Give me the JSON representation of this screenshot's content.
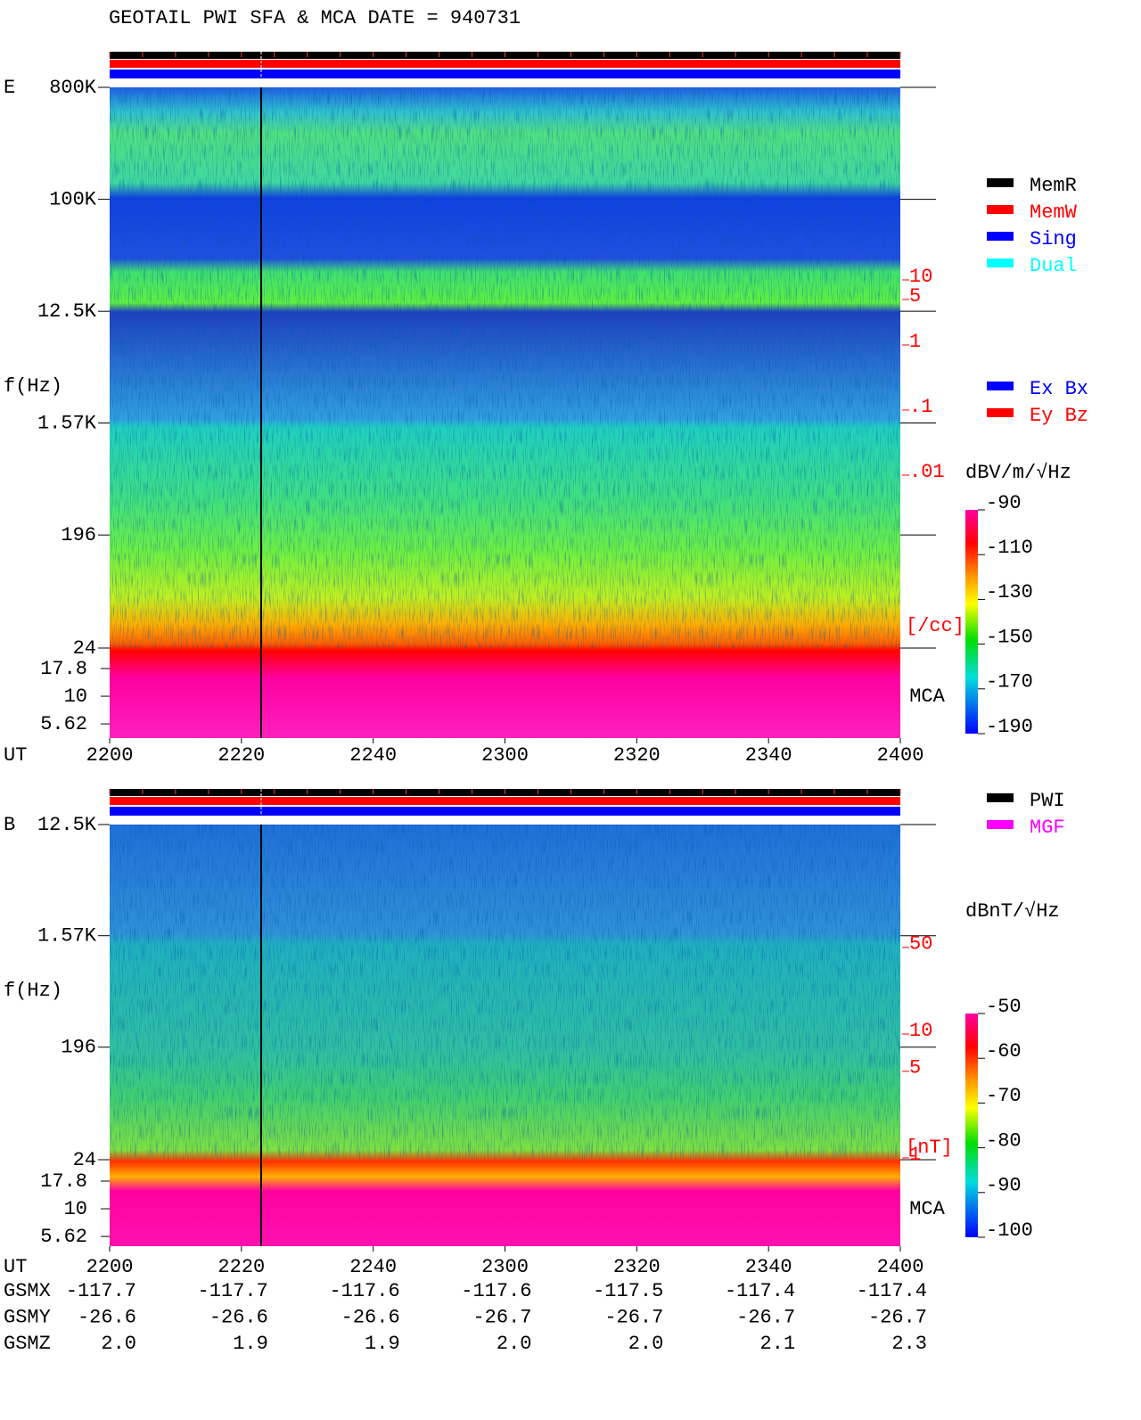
{
  "title": "GEOTAIL  PWI SFA & MCA   DATE = 940731",
  "chart_data": [
    {
      "type": "spectrogram",
      "panel": "E",
      "ylabel": "f(Hz)",
      "xlabel": "UT",
      "log_y": true,
      "ylim": [
        24,
        800000
      ],
      "yticks": [
        {
          "value": 800000,
          "label": "800K"
        },
        {
          "value": 100000,
          "label": "100K"
        },
        {
          "value": 12500,
          "label": "12.5K"
        },
        {
          "value": 1570,
          "label": "1.57K"
        },
        196,
        24
      ],
      "mca_label": "MCA",
      "mca_yticks": [
        17.8,
        10,
        5.62
      ],
      "xticks": [
        "2200",
        "2220",
        "2240",
        "2300",
        "2320",
        "2340",
        "2400"
      ],
      "side_scale": {
        "ticks": [
          10,
          5,
          1,
          {
            "value": 0.1,
            "label": ".1"
          },
          {
            "value": 0.01,
            "label": ".01"
          }
        ],
        "unit": "[/cc]",
        "color": "#ff0000"
      },
      "colorbar": {
        "label": "dBV/m/√Hz",
        "clim": [
          -190,
          -90
        ],
        "ticks": [
          -90,
          -110,
          -130,
          -150,
          -170,
          -190
        ]
      },
      "legends": [
        [
          {
            "name": "MemR",
            "color": "#000000"
          },
          {
            "name": "MemW",
            "color": "#ff0000"
          },
          {
            "name": "Sing",
            "color": "#0000ff"
          },
          {
            "name": "Dual",
            "color": "#00ffff"
          }
        ],
        [
          {
            "name": "Ex Bx",
            "color": "#0000ff"
          },
          {
            "name": "Ey Bz",
            "color": "#ff0000"
          }
        ]
      ]
    },
    {
      "type": "spectrogram",
      "panel": "B",
      "ylabel": "f(Hz)",
      "xlabel": "UT",
      "log_y": true,
      "ylim": [
        24,
        12500
      ],
      "yticks": [
        {
          "value": 12500,
          "label": "12.5K"
        },
        {
          "value": 1570,
          "label": "1.57K"
        },
        196,
        24
      ],
      "mca_label": "MCA",
      "mca_yticks": [
        17.8,
        10,
        5.62
      ],
      "xticks": [
        "2200",
        "2220",
        "2240",
        "2300",
        "2320",
        "2340",
        "2400"
      ],
      "side_scale": {
        "ticks": [
          50,
          10,
          5,
          1
        ],
        "unit": "[nT]",
        "color": "#ff0000"
      },
      "colorbar": {
        "label": "dBnT/√Hz",
        "clim": [
          -100,
          -50
        ],
        "ticks": [
          -50,
          -60,
          -70,
          -80,
          -90,
          -100
        ]
      },
      "legends": [
        [
          {
            "name": "PWI",
            "color": "#000000"
          },
          {
            "name": "MGF",
            "color": "#ff00ff"
          }
        ]
      ]
    }
  ],
  "orbit": {
    "rows": [
      {
        "label": "GSMX",
        "values": [
          "-117.7",
          "-117.7",
          "-117.6",
          "-117.6",
          "-117.5",
          "-117.4",
          "-117.4"
        ]
      },
      {
        "label": "GSMY",
        "values": [
          "-26.6",
          "-26.6",
          "-26.6",
          "-26.7",
          "-26.7",
          "-26.7",
          "-26.7"
        ]
      },
      {
        "label": "GSMZ",
        "values": [
          "2.0",
          "1.9",
          "1.9",
          "2.0",
          "2.0",
          "2.1",
          "2.3"
        ]
      }
    ]
  }
}
